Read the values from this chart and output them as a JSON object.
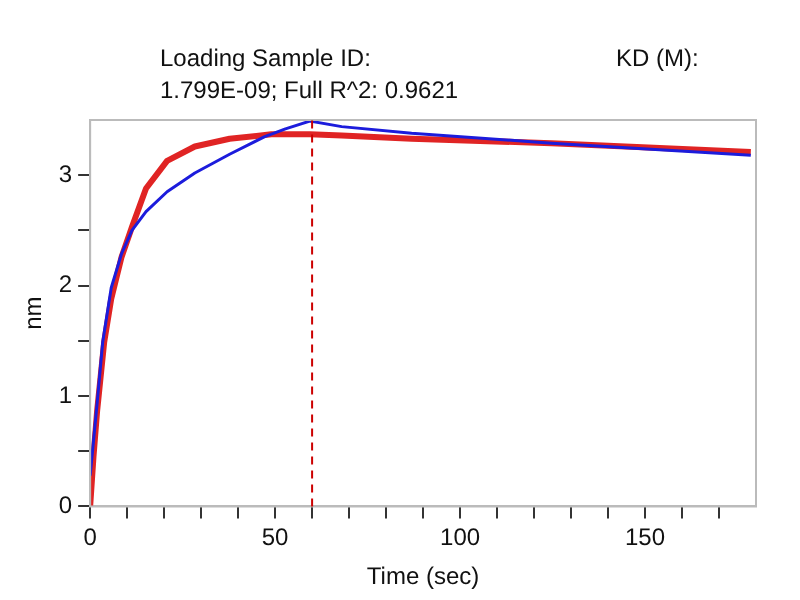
{
  "chart_data": {
    "type": "line",
    "title": "Loading Sample ID:",
    "subtitle": "1.799E-09; Full R^2: 0.9621",
    "annotations": [
      "KD (M):"
    ],
    "xlabel": "Time (sec)",
    "ylabel": "nm",
    "series": [
      {
        "color": "#1c1cdc",
        "x": [
          0,
          0.9,
          1.9,
          3.4,
          5.7,
          8.5,
          11.3,
          15.1,
          20.8,
          28.3,
          37.7,
          47.2,
          52.8,
          59.4,
          68,
          86.9,
          124.7,
          178.6
        ],
        "values": [
          0.28,
          0.59,
          0.94,
          1.49,
          1.98,
          2.29,
          2.5,
          2.67,
          2.85,
          3.02,
          3.19,
          3.35,
          3.42,
          3.49,
          3.44,
          3.38,
          3.29,
          3.18
        ]
      },
      {
        "color": "#e02424",
        "x": [
          0,
          0.9,
          1.9,
          3.8,
          5.7,
          8.5,
          11.3,
          15.1,
          20.8,
          28.3,
          37.7,
          49,
          59.4,
          68,
          86.9,
          124.7,
          178.6
        ],
        "values": [
          0,
          0.45,
          0.87,
          1.49,
          1.88,
          2.26,
          2.53,
          2.88,
          3.13,
          3.26,
          3.33,
          3.37,
          3.37,
          3.36,
          3.33,
          3.29,
          3.21
        ]
      }
    ],
    "xlim": [
      0,
      180
    ],
    "xticks": [
      0,
      {
        "value": 10,
        "label": null
      },
      {
        "value": 20,
        "label": null
      },
      {
        "value": 30,
        "label": null
      },
      {
        "value": 40,
        "label": null
      },
      50,
      {
        "value": 60,
        "label": null
      },
      {
        "value": 70,
        "label": null
      },
      {
        "value": 80,
        "label": null
      },
      {
        "value": 90,
        "label": null
      },
      100,
      {
        "value": 110,
        "label": null
      },
      {
        "value": 120,
        "label": null
      },
      {
        "value": 130,
        "label": null
      },
      {
        "value": 140,
        "label": null
      },
      150,
      {
        "value": 160,
        "label": null
      },
      {
        "value": 170,
        "label": null
      }
    ],
    "ylim": [
      0,
      3.5
    ],
    "yticks": [
      0,
      {
        "value": 0.5,
        "label": null
      },
      1,
      {
        "value": 1.5,
        "label": null
      },
      2,
      {
        "value": 2.5,
        "label": null
      },
      3
    ],
    "ref_lines": [
      {
        "axis": "x",
        "value": 60,
        "color": "#cc0000",
        "line_style": "dashed"
      }
    ],
    "grid": false,
    "legend": false,
    "marker": "none",
    "line_style": "solid"
  }
}
